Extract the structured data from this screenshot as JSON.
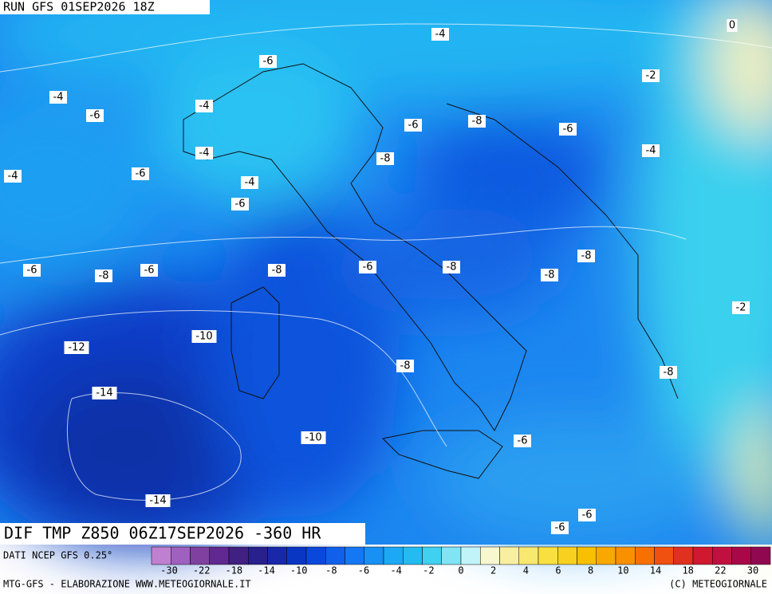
{
  "header": {
    "run": "RUN GFS 01SEP2026 18Z"
  },
  "title": "DIF TMP Z850 06Z17SEP2026 -360 HR",
  "source": "DATI NCEP GFS 0.25°",
  "credits": {
    "left": "MTG-GFS - ELABORAZIONE WWW.METEOGIORNALE.IT",
    "right": "(C) METEOGIORNALE"
  },
  "colorbar": {
    "labels": [
      "-30",
      "-22",
      "-18",
      "-14",
      "-10",
      "-8",
      "-6",
      "-4",
      "-2",
      "0",
      "2",
      "4",
      "6",
      "8",
      "10",
      "14",
      "18",
      "22",
      "30"
    ]
  },
  "contour_labels": [
    "-4",
    "0",
    "-6",
    "-2",
    "-4",
    "-6",
    "-4",
    "-6",
    "-8",
    "-6",
    "-4",
    "-4",
    "-8",
    "-4",
    "-6",
    "-4",
    "-6",
    "-6",
    "-8",
    "-6",
    "-8",
    "-8",
    "-6",
    "-8",
    "-8",
    "-10",
    "-2",
    "-12",
    "-8",
    "-8",
    "-14",
    "-10",
    "-6",
    "-6",
    "-14",
    "-6"
  ]
}
